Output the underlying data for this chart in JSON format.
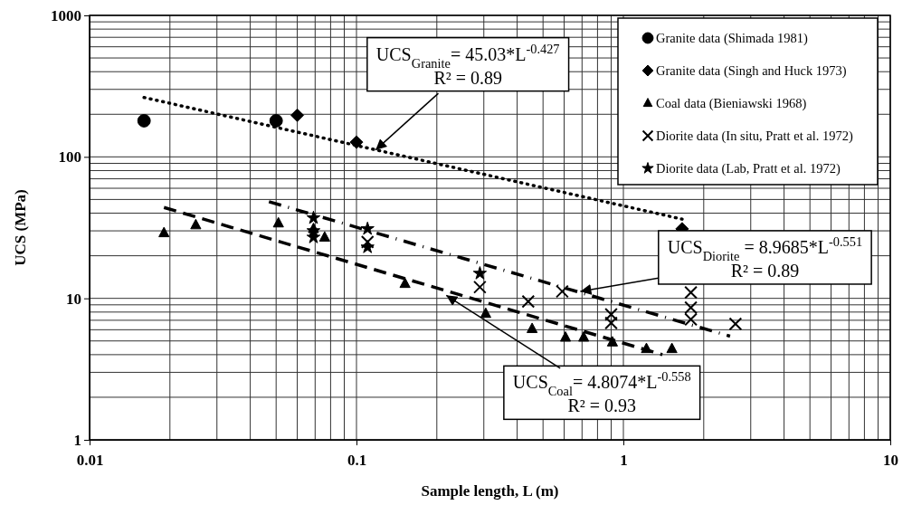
{
  "chart_data": {
    "type": "scatter",
    "xlabel": "Sample length, L (m)",
    "ylabel": "UCS (MPa)",
    "log": "xy",
    "xlim": [
      0.01,
      10
    ],
    "ylim": [
      1,
      1000
    ],
    "xticks": [
      0.01,
      0.1,
      1,
      10
    ],
    "yticks": [
      1,
      10,
      100,
      1000
    ],
    "grid": true,
    "legend": "top right",
    "series": [
      {
        "name": "Granite data (Shimada 1981)",
        "color": "#000000",
        "marker": "circle",
        "x": [
          0.016,
          0.05
        ],
        "values": [
          180,
          180
        ]
      },
      {
        "name": "Granite data (Singh and Huck 1973)",
        "color": "#000000",
        "marker": "diamond",
        "x": [
          0.06,
          0.1,
          1.66
        ],
        "values": [
          197,
          127,
          31
        ]
      },
      {
        "name": "Coal data (Bieniawski 1968)",
        "color": "#000000",
        "marker": "triangle",
        "x": [
          0.019,
          0.025,
          0.051,
          0.069,
          0.076,
          0.152,
          0.305,
          0.455,
          0.607,
          0.71,
          0.91,
          1.22,
          1.52
        ],
        "values": [
          29,
          33,
          34,
          31,
          27,
          12.7,
          7.8,
          6.1,
          5.3,
          5.3,
          4.9,
          4.4,
          4.4
        ]
      },
      {
        "name": "Diorite data (In situ, Pratt et al. 1972)",
        "color": "#000000",
        "marker": "cross",
        "x": [
          0.11,
          0.29,
          0.44,
          0.59,
          0.9,
          0.9,
          1.79,
          1.79,
          1.79,
          2.63
        ],
        "values": [
          25,
          12,
          9.5,
          11.2,
          7.7,
          6.7,
          11,
          8.6,
          7.1,
          6.6
        ]
      },
      {
        "name": "Diorite data (Lab, Pratt et al. 1972)",
        "color": "#000000",
        "marker": "star",
        "x": [
          0.069,
          0.069,
          0.069,
          0.11,
          0.11,
          0.29
        ],
        "values": [
          37,
          30,
          27,
          31,
          23,
          15
        ]
      },
      {
        "type": "line",
        "color": "#000000",
        "line_style": "dotted",
        "marker": "none",
        "x": [
          0.016,
          1.66
        ],
        "values": [
          263,
          36.3
        ]
      },
      {
        "type": "line",
        "color": "#000000",
        "line_style": "dashed",
        "marker": "none",
        "x": [
          0.019,
          1.4
        ],
        "values": [
          43.9,
          4.0
        ]
      },
      {
        "type": "line",
        "color": "#000000",
        "line_style": "dashdot",
        "marker": "none",
        "x": [
          0.047,
          2.51
        ],
        "values": [
          48.2,
          5.4
        ]
      }
    ],
    "annotations": [
      {
        "text": "UCS$_{Granite}$= 45.03*L$^{-0.427}$",
        "x": 0.118,
        "y": 112
      },
      "R² = 0.89",
      {
        "text": "UCS$_{Diorite}$ = 8.9685*L$^{-0.551}$",
        "x": 0.69,
        "y": 11.2
      },
      "R² = 0.89",
      {
        "text": "UCS$_{Coal}$= 4.8074*L$^{-0.558}$",
        "x": 0.217,
        "y": 10.5
      },
      "R² = 0.93"
    ]
  }
}
